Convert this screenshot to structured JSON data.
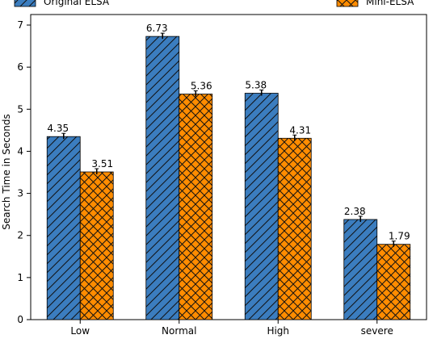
{
  "chart_data": {
    "type": "bar",
    "categories": [
      "Low",
      "Normal",
      "High",
      "severe"
    ],
    "series": [
      {
        "name": "Original ELSA",
        "values": [
          4.35,
          6.73,
          5.38,
          2.38
        ],
        "color": "#3b7dbf",
        "pattern": "diagonal-hatch"
      },
      {
        "name": "Mini-ELSA",
        "values": [
          3.51,
          5.36,
          4.31,
          1.79
        ],
        "color": "#ff8c00",
        "pattern": "cross-hatch"
      }
    ],
    "data_labels": [
      [
        "4.35",
        "6.73",
        "5.38",
        "2.38"
      ],
      [
        "3.51",
        "5.36",
        "4.31",
        "1.79"
      ]
    ],
    "ylabel": "Search Time in Seconds",
    "xlabel": "",
    "ylim": [
      0,
      7.25
    ],
    "yticks": [
      0,
      1,
      2,
      3,
      4,
      5,
      6,
      7
    ],
    "error_bars": true,
    "grid": false,
    "legend_position": "top"
  }
}
